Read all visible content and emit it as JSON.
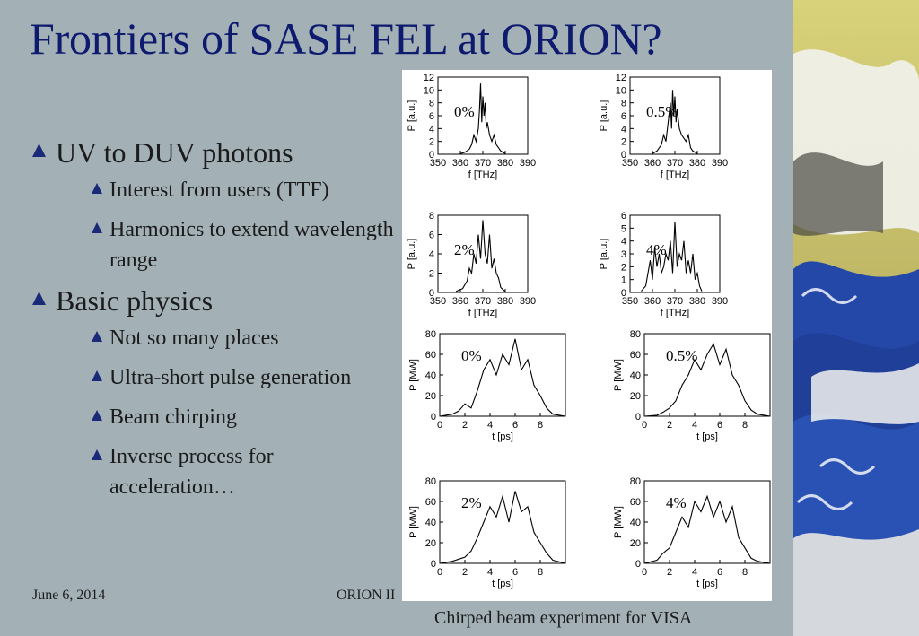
{
  "slide": {
    "title": "Frontiers of SASE FEL at ORION?",
    "bullets": [
      {
        "text": "UV to DUV photons",
        "sub": [
          "Interest from users (TTF)",
          "Harmonics to extend wavelength range"
        ]
      },
      {
        "text": "Basic physics",
        "sub": [
          "Not so many places",
          "Ultra-short pulse generation",
          "Beam chirping",
          "Inverse process for acceleration…"
        ]
      }
    ],
    "footer_date": "June 6, 2014",
    "footer_title": "ORION II",
    "caption": "Chirped beam experiment for VISA",
    "colors": {
      "background": "#a3b1b7",
      "title": "#0e1a6e",
      "bullet_marker": "#1a2a78"
    }
  },
  "chart_data": [
    {
      "type": "line",
      "panel": "spectrum",
      "annotation": "0%",
      "xlabel": "f [THz]",
      "ylabel": "P [a.u.]",
      "xlim": [
        350,
        390
      ],
      "ylim": [
        0,
        12
      ],
      "xticks": [
        350,
        360,
        370,
        380,
        390
      ],
      "yticks": [
        0,
        2,
        4,
        6,
        8,
        10,
        12
      ],
      "x": [
        360,
        362,
        364,
        365,
        366,
        367,
        368,
        368.5,
        369,
        369.5,
        370,
        370.5,
        371,
        371.5,
        372,
        373,
        374,
        375,
        376,
        377,
        378,
        380
      ],
      "y": [
        0.1,
        0.3,
        0.8,
        1.5,
        3,
        2,
        4,
        7,
        11,
        5,
        9,
        6,
        8,
        4,
        5,
        3,
        2,
        3,
        1.5,
        1,
        0.5,
        0.1
      ]
    },
    {
      "type": "line",
      "panel": "spectrum",
      "annotation": "0.5%",
      "xlabel": "f [THz]",
      "ylabel": "P [a.u.]",
      "xlim": [
        350,
        390
      ],
      "ylim": [
        0,
        12
      ],
      "xticks": [
        350,
        360,
        370,
        380,
        390
      ],
      "yticks": [
        0,
        2,
        4,
        6,
        8,
        10,
        12
      ],
      "x": [
        360,
        362,
        364,
        365,
        366,
        367,
        368,
        368.5,
        369,
        369.5,
        370,
        370.5,
        371,
        372,
        373,
        374,
        375,
        376,
        377,
        378,
        380
      ],
      "y": [
        0.1,
        0.5,
        1.5,
        3,
        2,
        5,
        8,
        4,
        10,
        6,
        9,
        5,
        7,
        4,
        3,
        2.5,
        2,
        3,
        1,
        0.5,
        0.1
      ]
    },
    {
      "type": "line",
      "panel": "spectrum",
      "annotation": "2%",
      "xlabel": "f [THz]",
      "ylabel": "P [a.u.]",
      "xlim": [
        350,
        390
      ],
      "ylim": [
        0,
        8
      ],
      "xticks": [
        350,
        360,
        370,
        380,
        390
      ],
      "yticks": [
        0,
        2,
        4,
        6,
        8
      ],
      "x": [
        358,
        361,
        363,
        364,
        365,
        366,
        367,
        368,
        369,
        370,
        371,
        372,
        373,
        374,
        375,
        376,
        377,
        378,
        380
      ],
      "y": [
        0.1,
        0.4,
        1.2,
        2.5,
        2,
        4,
        3,
        6,
        3.5,
        7.5,
        4,
        3,
        6,
        2.5,
        3.5,
        2,
        1.5,
        0.5,
        0.1
      ]
    },
    {
      "type": "line",
      "panel": "spectrum",
      "annotation": "4%",
      "xlabel": "f [THz]",
      "ylabel": "P [a.u.]",
      "xlim": [
        350,
        390
      ],
      "ylim": [
        0,
        6
      ],
      "xticks": [
        350,
        360,
        370,
        380,
        390
      ],
      "yticks": [
        0,
        1,
        2,
        3,
        4,
        5,
        6
      ],
      "x": [
        355,
        357,
        358,
        359,
        360,
        361,
        362,
        363,
        364,
        365,
        366,
        367,
        368,
        369,
        370,
        371,
        372,
        373,
        374,
        375,
        376,
        377,
        378,
        379,
        380,
        381,
        382
      ],
      "y": [
        0.1,
        0.5,
        1.5,
        2.5,
        1,
        3.5,
        2,
        3,
        1.5,
        2,
        3,
        2.5,
        4,
        1.5,
        5.5,
        2,
        3,
        2.5,
        4,
        1.5,
        2.5,
        1.5,
        3,
        1,
        1.5,
        0.5,
        0.1
      ]
    },
    {
      "type": "line",
      "panel": "pulse",
      "annotation": "0%",
      "xlabel": "t [ps]",
      "ylabel": "P [MW]",
      "xlim": [
        0,
        10
      ],
      "ylim": [
        0,
        80
      ],
      "xticks": [
        0,
        2,
        4,
        6,
        8
      ],
      "yticks": [
        0,
        20,
        40,
        60,
        80
      ],
      "x": [
        0,
        1,
        1.5,
        2,
        2.5,
        3,
        3.5,
        4,
        4.5,
        5,
        5.5,
        6,
        6.5,
        7,
        7.5,
        8,
        8.5,
        9,
        10
      ],
      "y": [
        0,
        2,
        5,
        12,
        8,
        25,
        45,
        55,
        40,
        60,
        50,
        75,
        45,
        55,
        30,
        20,
        8,
        2,
        0
      ]
    },
    {
      "type": "line",
      "panel": "pulse",
      "annotation": "0.5%",
      "xlabel": "t [ps]",
      "ylabel": "P [MW]",
      "xlim": [
        0,
        10
      ],
      "ylim": [
        0,
        80
      ],
      "xticks": [
        0,
        2,
        4,
        6,
        8
      ],
      "yticks": [
        0,
        20,
        40,
        60,
        80
      ],
      "x": [
        0,
        1,
        1.5,
        2,
        2.5,
        3,
        3.5,
        4,
        4.5,
        5,
        5.5,
        6,
        6.5,
        7,
        7.5,
        8,
        8.5,
        9,
        10
      ],
      "y": [
        0,
        1,
        4,
        8,
        15,
        30,
        40,
        55,
        45,
        60,
        70,
        50,
        65,
        40,
        30,
        15,
        6,
        2,
        0
      ]
    },
    {
      "type": "line",
      "panel": "pulse",
      "annotation": "2%",
      "xlabel": "t [ps]",
      "ylabel": "P [MW]",
      "xlim": [
        0,
        10
      ],
      "ylim": [
        0,
        80
      ],
      "xticks": [
        0,
        2,
        4,
        6,
        8
      ],
      "yticks": [
        0,
        20,
        40,
        60,
        80
      ],
      "x": [
        0,
        1,
        2,
        2.5,
        3,
        3.5,
        4,
        4.5,
        5,
        5.5,
        6,
        6.5,
        7,
        7.5,
        8,
        8.5,
        9,
        10
      ],
      "y": [
        0,
        2,
        6,
        12,
        25,
        40,
        55,
        45,
        65,
        40,
        70,
        50,
        55,
        30,
        20,
        10,
        3,
        0
      ]
    },
    {
      "type": "line",
      "panel": "pulse",
      "annotation": "4%",
      "xlabel": "t [ps]",
      "ylabel": "P [MW]",
      "xlim": [
        0,
        10
      ],
      "ylim": [
        0,
        80
      ],
      "xticks": [
        0,
        2,
        4,
        6,
        8
      ],
      "yticks": [
        0,
        20,
        40,
        60,
        80
      ],
      "x": [
        0,
        1,
        1.5,
        2,
        2.5,
        3,
        3.5,
        4,
        4.5,
        5,
        5.5,
        6,
        6.5,
        7,
        7.5,
        8,
        8.5,
        9,
        10
      ],
      "y": [
        0,
        3,
        10,
        15,
        30,
        45,
        35,
        60,
        50,
        65,
        45,
        60,
        40,
        55,
        25,
        15,
        5,
        2,
        0
      ]
    }
  ]
}
